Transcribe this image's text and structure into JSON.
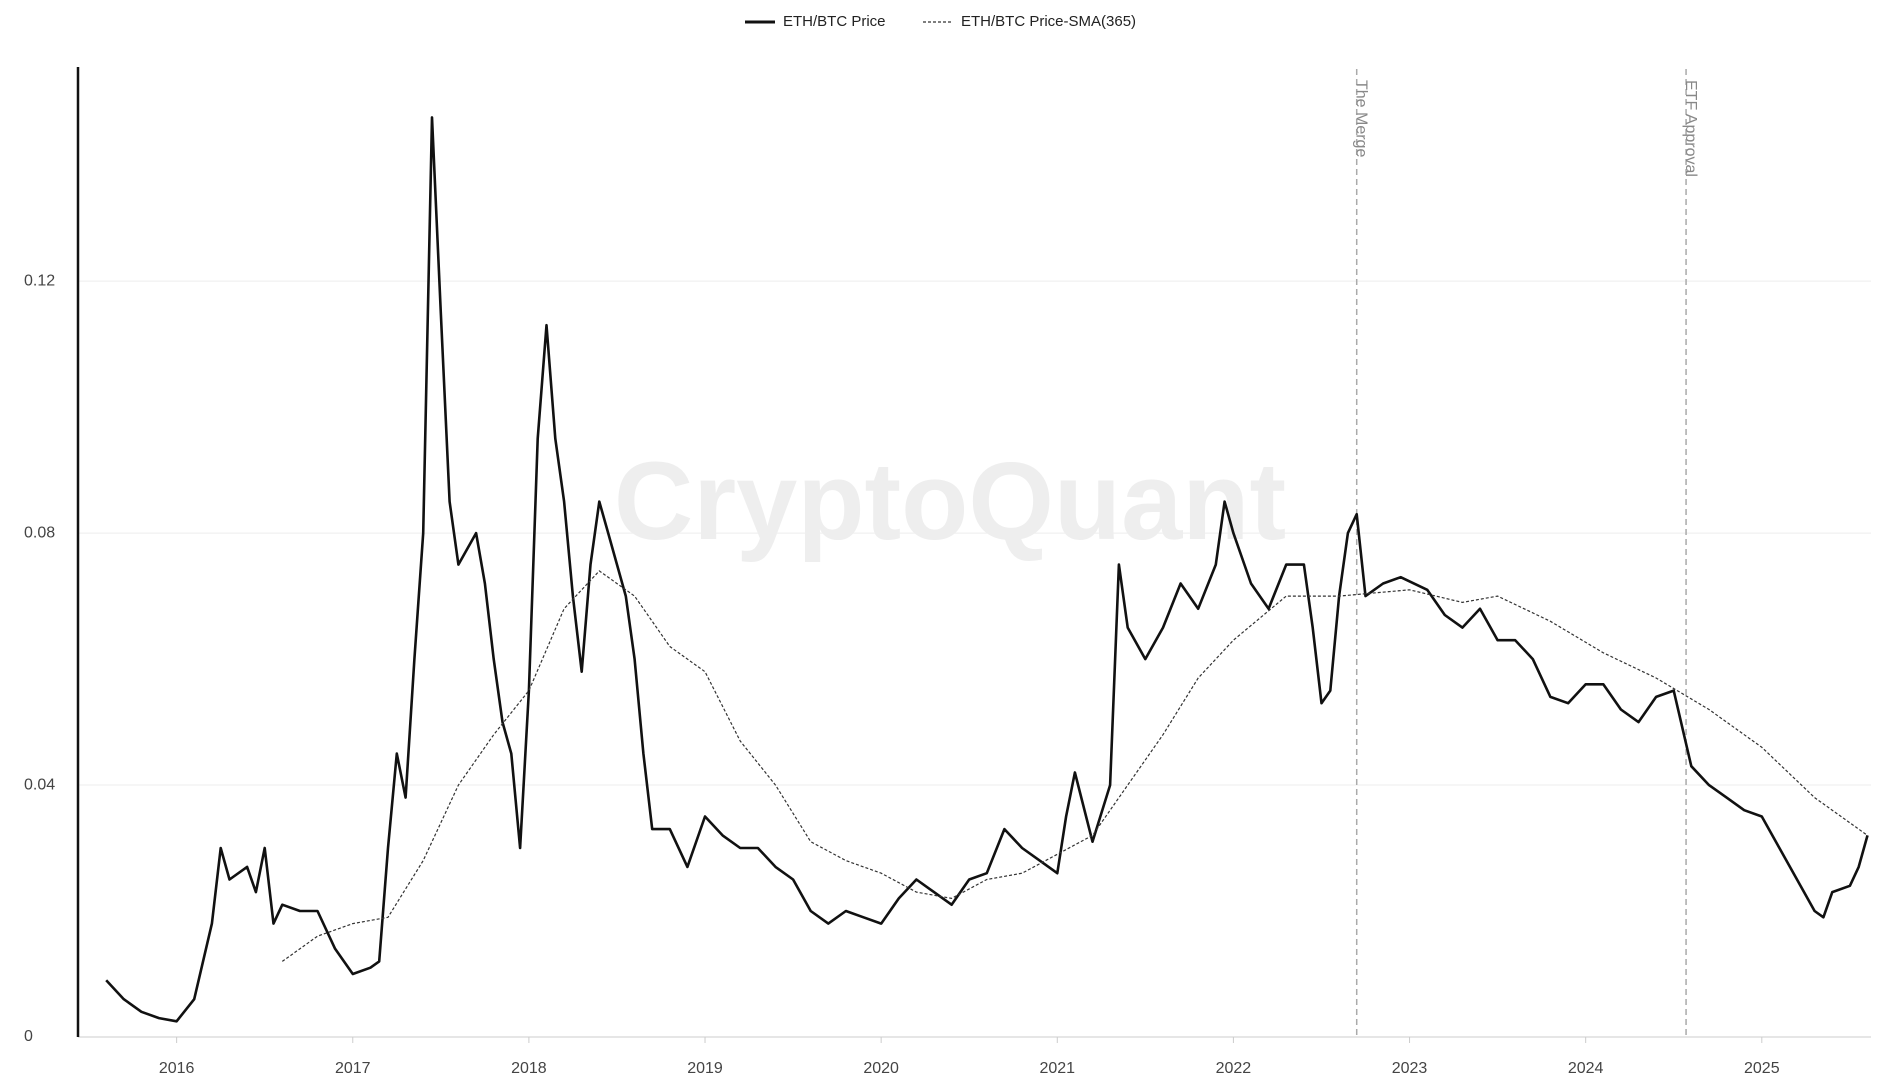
{
  "chart_data": {
    "type": "line",
    "watermark": "CryptoQuant",
    "xlim": [
      2015.44,
      2025.62
    ],
    "xticks": [
      2016,
      2017,
      2018,
      2019,
      2020,
      2021,
      2022,
      2023,
      2024,
      2025
    ],
    "ylim": [
      0,
      0.154
    ],
    "yticks": [
      0,
      0.04,
      0.08,
      0.12
    ],
    "grid": true,
    "annotations": [
      {
        "x": 2022.7,
        "label": "The Merge"
      },
      {
        "x": 2024.57,
        "label": "ETF Approval"
      }
    ],
    "series": [
      {
        "name": "ETH/BTC Price",
        "color": "#111111",
        "dash": false,
        "x": [
          2015.6,
          2015.7,
          2015.8,
          2015.9,
          2016.0,
          2016.1,
          2016.2,
          2016.25,
          2016.3,
          2016.4,
          2016.45,
          2016.5,
          2016.55,
          2016.6,
          2016.7,
          2016.8,
          2016.9,
          2017.0,
          2017.1,
          2017.15,
          2017.2,
          2017.25,
          2017.3,
          2017.35,
          2017.4,
          2017.45,
          2017.5,
          2017.55,
          2017.6,
          2017.7,
          2017.75,
          2017.8,
          2017.85,
          2017.9,
          2017.95,
          2018.0,
          2018.05,
          2018.1,
          2018.15,
          2018.2,
          2018.25,
          2018.3,
          2018.35,
          2018.4,
          2018.45,
          2018.5,
          2018.55,
          2018.6,
          2018.65,
          2018.7,
          2018.8,
          2018.9,
          2019.0,
          2019.1,
          2019.2,
          2019.3,
          2019.4,
          2019.5,
          2019.6,
          2019.7,
          2019.8,
          2019.9,
          2020.0,
          2020.1,
          2020.2,
          2020.3,
          2020.4,
          2020.5,
          2020.6,
          2020.7,
          2020.8,
          2020.9,
          2021.0,
          2021.05,
          2021.1,
          2021.2,
          2021.3,
          2021.35,
          2021.4,
          2021.5,
          2021.6,
          2021.7,
          2021.8,
          2021.9,
          2021.95,
          2022.0,
          2022.1,
          2022.2,
          2022.3,
          2022.4,
          2022.45,
          2022.5,
          2022.55,
          2022.6,
          2022.65,
          2022.7,
          2022.75,
          2022.85,
          2022.95,
          2023.1,
          2023.2,
          2023.3,
          2023.4,
          2023.5,
          2023.6,
          2023.7,
          2023.8,
          2023.9,
          2024.0,
          2024.1,
          2024.2,
          2024.3,
          2024.4,
          2024.5,
          2024.6,
          2024.7,
          2024.8,
          2024.9,
          2025.0,
          2025.1,
          2025.2,
          2025.3,
          2025.35,
          2025.4,
          2025.5,
          2025.55,
          2025.6
        ],
        "values": [
          0.009,
          0.006,
          0.004,
          0.003,
          0.0025,
          0.006,
          0.018,
          0.03,
          0.025,
          0.027,
          0.023,
          0.03,
          0.018,
          0.021,
          0.02,
          0.02,
          0.014,
          0.01,
          0.011,
          0.012,
          0.03,
          0.045,
          0.038,
          0.06,
          0.08,
          0.146,
          0.115,
          0.085,
          0.075,
          0.08,
          0.072,
          0.06,
          0.05,
          0.045,
          0.03,
          0.055,
          0.095,
          0.113,
          0.095,
          0.085,
          0.07,
          0.058,
          0.075,
          0.085,
          0.08,
          0.075,
          0.07,
          0.06,
          0.045,
          0.033,
          0.033,
          0.027,
          0.035,
          0.032,
          0.03,
          0.03,
          0.027,
          0.025,
          0.02,
          0.018,
          0.02,
          0.019,
          0.018,
          0.022,
          0.025,
          0.023,
          0.021,
          0.025,
          0.026,
          0.033,
          0.03,
          0.028,
          0.026,
          0.035,
          0.042,
          0.031,
          0.04,
          0.075,
          0.065,
          0.06,
          0.065,
          0.072,
          0.068,
          0.075,
          0.085,
          0.08,
          0.072,
          0.068,
          0.075,
          0.075,
          0.065,
          0.053,
          0.055,
          0.07,
          0.08,
          0.083,
          0.07,
          0.072,
          0.073,
          0.071,
          0.067,
          0.065,
          0.068,
          0.063,
          0.063,
          0.06,
          0.054,
          0.053,
          0.056,
          0.056,
          0.052,
          0.05,
          0.054,
          0.055,
          0.043,
          0.04,
          0.038,
          0.036,
          0.035,
          0.03,
          0.025,
          0.02,
          0.019,
          0.023,
          0.024,
          0.027,
          0.032
        ]
      },
      {
        "name": "ETH/BTC Price-SMA(365)",
        "color": "#333333",
        "dash": true,
        "x": [
          2016.6,
          2016.8,
          2017.0,
          2017.2,
          2017.4,
          2017.6,
          2017.8,
          2018.0,
          2018.2,
          2018.4,
          2018.6,
          2018.8,
          2019.0,
          2019.2,
          2019.4,
          2019.6,
          2019.8,
          2020.0,
          2020.2,
          2020.4,
          2020.6,
          2020.8,
          2021.0,
          2021.2,
          2021.4,
          2021.6,
          2021.8,
          2022.0,
          2022.3,
          2022.6,
          2023.0,
          2023.3,
          2023.5,
          2023.8,
          2024.1,
          2024.4,
          2024.7,
          2025.0,
          2025.3,
          2025.6
        ],
        "values": [
          0.012,
          0.016,
          0.018,
          0.019,
          0.028,
          0.04,
          0.048,
          0.055,
          0.068,
          0.074,
          0.07,
          0.062,
          0.058,
          0.047,
          0.04,
          0.031,
          0.028,
          0.026,
          0.023,
          0.022,
          0.025,
          0.026,
          0.029,
          0.032,
          0.04,
          0.048,
          0.057,
          0.063,
          0.07,
          0.07,
          0.071,
          0.069,
          0.07,
          0.066,
          0.061,
          0.057,
          0.052,
          0.046,
          0.038,
          0.032
        ]
      }
    ]
  }
}
